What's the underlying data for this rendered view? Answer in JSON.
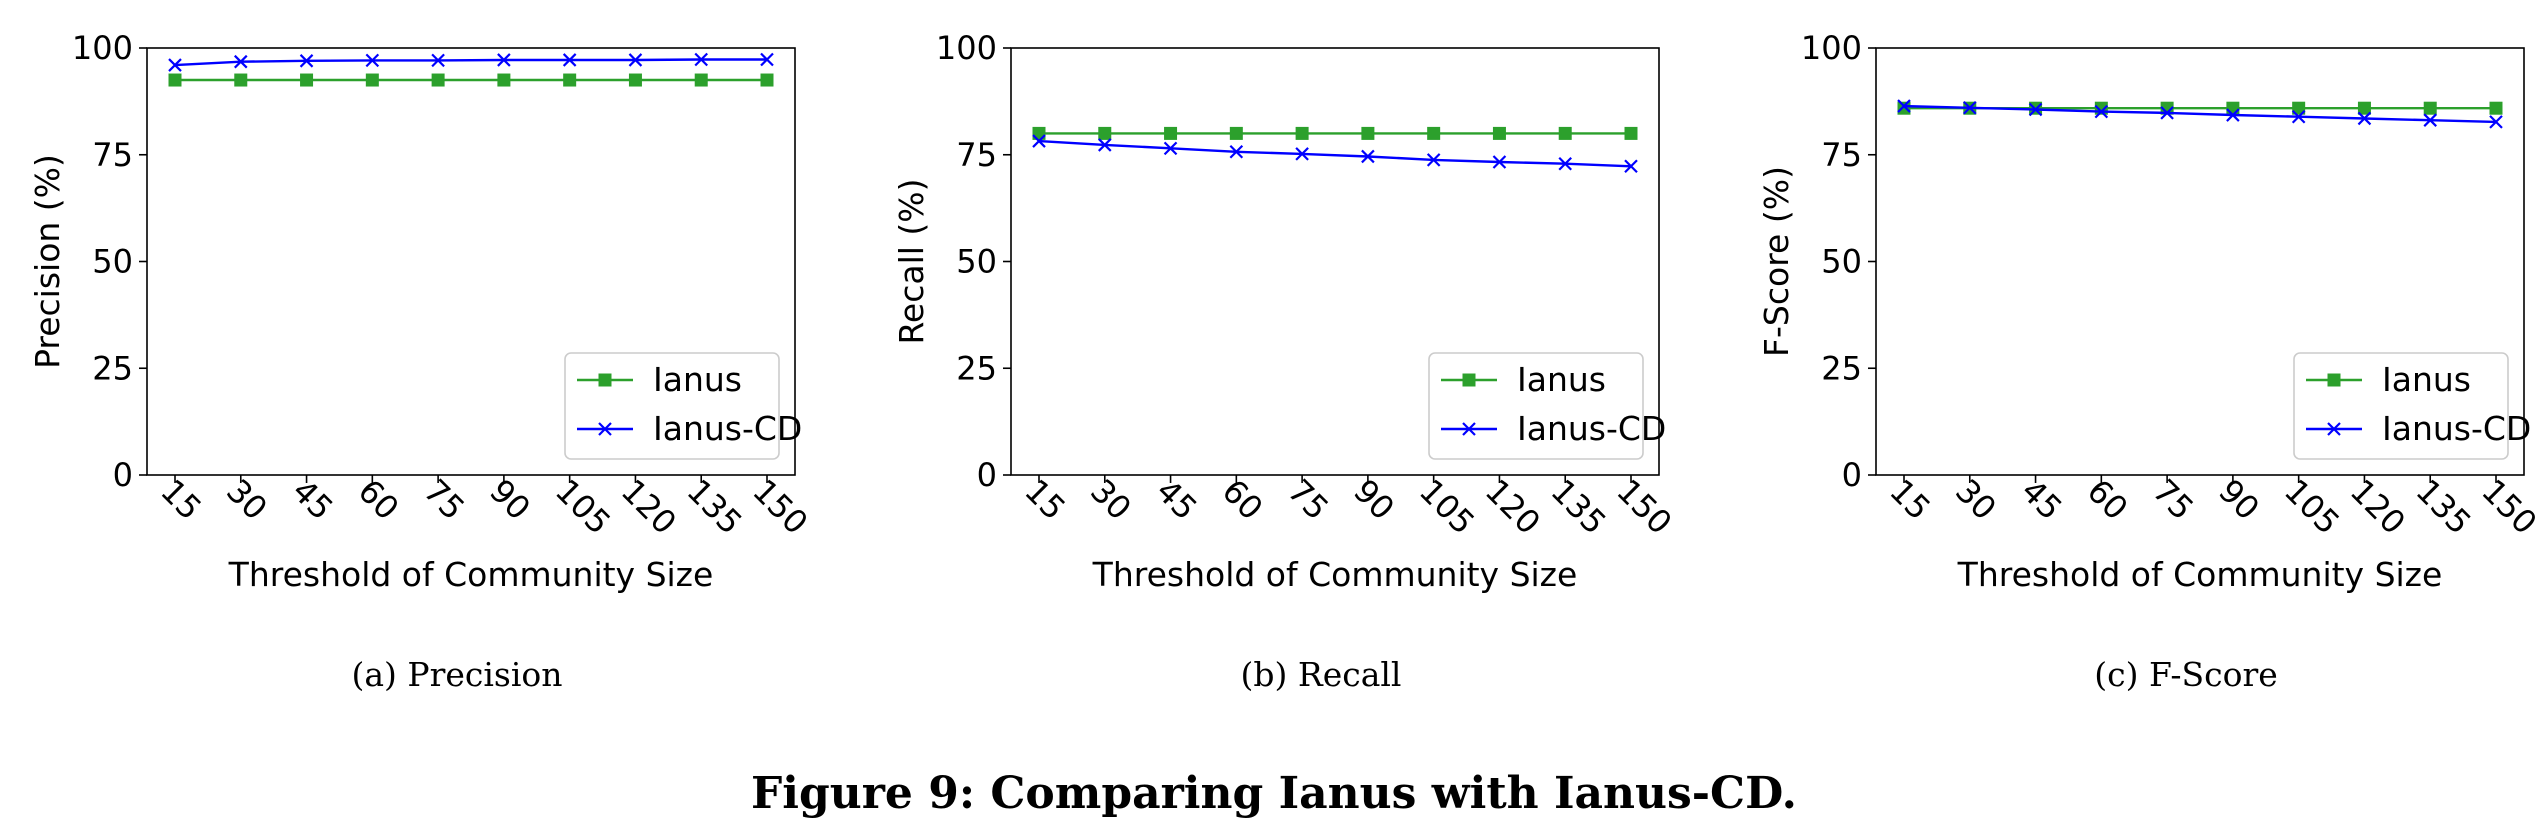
{
  "figure": {
    "caption": "Figure 9: Comparing Ianus with Ianus-CD."
  },
  "chart_data": [
    {
      "type": "line",
      "subcaption": "(a)  Precision",
      "xlabel": "Threshold of Community Size",
      "ylabel": "Precision (%)",
      "x": [
        15,
        30,
        45,
        60,
        75,
        90,
        105,
        120,
        135,
        150
      ],
      "x_tick_labels": [
        "15",
        "30",
        "45",
        "60",
        "75",
        "90",
        "105",
        "120",
        "135",
        "150"
      ],
      "y_ticks": [
        0,
        25,
        50,
        75,
        100
      ],
      "ylim": [
        0,
        100
      ],
      "grid": false,
      "legend_position": "lower-right",
      "series": [
        {
          "name": "Ianus",
          "color": "#2ca02c",
          "marker": "square",
          "values": [
            92.5,
            92.5,
            92.5,
            92.5,
            92.5,
            92.5,
            92.5,
            92.5,
            92.5,
            92.5
          ]
        },
        {
          "name": "Ianus-CD",
          "color": "#0000ff",
          "marker": "x",
          "values": [
            96.0,
            96.8,
            97.0,
            97.1,
            97.1,
            97.2,
            97.2,
            97.2,
            97.3,
            97.3
          ]
        }
      ]
    },
    {
      "type": "line",
      "subcaption": "(b)  Recall",
      "xlabel": "Threshold of Community Size",
      "ylabel": "Recall (%)",
      "x": [
        15,
        30,
        45,
        60,
        75,
        90,
        105,
        120,
        135,
        150
      ],
      "x_tick_labels": [
        "15",
        "30",
        "45",
        "60",
        "75",
        "90",
        "105",
        "120",
        "135",
        "150"
      ],
      "y_ticks": [
        0,
        25,
        50,
        75,
        100
      ],
      "ylim": [
        0,
        100
      ],
      "grid": false,
      "legend_position": "lower-right",
      "series": [
        {
          "name": "Ianus",
          "color": "#2ca02c",
          "marker": "square",
          "values": [
            80.0,
            80.0,
            80.0,
            80.0,
            80.0,
            80.0,
            80.0,
            80.0,
            80.0,
            80.0
          ]
        },
        {
          "name": "Ianus-CD",
          "color": "#0000ff",
          "marker": "x",
          "values": [
            78.2,
            77.3,
            76.5,
            75.7,
            75.2,
            74.6,
            73.8,
            73.3,
            72.9,
            72.3
          ]
        }
      ]
    },
    {
      "type": "line",
      "subcaption": "(c)  F-Score",
      "xlabel": "Threshold of Community Size",
      "ylabel": "F-Score (%)",
      "x": [
        15,
        30,
        45,
        60,
        75,
        90,
        105,
        120,
        135,
        150
      ],
      "x_tick_labels": [
        "15",
        "30",
        "45",
        "60",
        "75",
        "90",
        "105",
        "120",
        "135",
        "150"
      ],
      "y_ticks": [
        0,
        25,
        50,
        75,
        100
      ],
      "ylim": [
        0,
        100
      ],
      "grid": false,
      "legend_position": "lower-right",
      "series": [
        {
          "name": "Ianus",
          "color": "#2ca02c",
          "marker": "square",
          "values": [
            85.9,
            85.9,
            85.9,
            85.9,
            85.9,
            85.9,
            85.9,
            85.9,
            85.9,
            85.9
          ]
        },
        {
          "name": "Ianus-CD",
          "color": "#0000ff",
          "marker": "x",
          "values": [
            86.4,
            86.0,
            85.6,
            85.1,
            84.8,
            84.3,
            83.9,
            83.5,
            83.1,
            82.7
          ]
        }
      ]
    }
  ]
}
